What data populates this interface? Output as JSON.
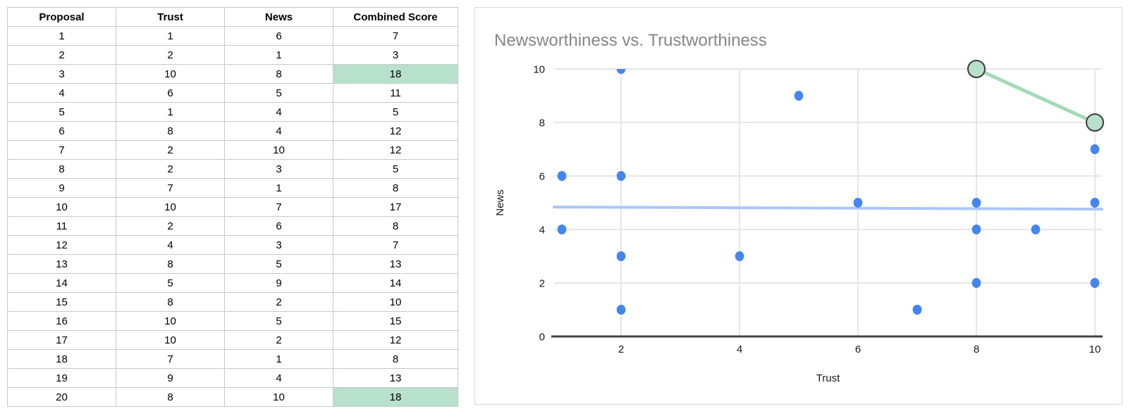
{
  "table": {
    "columns": [
      "Proposal",
      "Trust",
      "News",
      "Combined Score"
    ],
    "rows": [
      [
        1,
        1,
        6,
        7
      ],
      [
        2,
        2,
        1,
        3
      ],
      [
        3,
        10,
        8,
        18
      ],
      [
        4,
        6,
        5,
        11
      ],
      [
        5,
        1,
        4,
        5
      ],
      [
        6,
        8,
        4,
        12
      ],
      [
        7,
        2,
        10,
        12
      ],
      [
        8,
        2,
        3,
        5
      ],
      [
        9,
        7,
        1,
        8
      ],
      [
        10,
        10,
        7,
        17
      ],
      [
        11,
        2,
        6,
        8
      ],
      [
        12,
        4,
        3,
        7
      ],
      [
        13,
        8,
        5,
        13
      ],
      [
        14,
        5,
        9,
        14
      ],
      [
        15,
        8,
        2,
        10
      ],
      [
        16,
        10,
        5,
        15
      ],
      [
        17,
        10,
        2,
        12
      ],
      [
        18,
        7,
        1,
        8
      ],
      [
        19,
        9,
        4,
        13
      ],
      [
        20,
        8,
        10,
        18
      ]
    ],
    "highlighted_proposals": [
      3,
      20
    ],
    "highlight_column": "Combined Score",
    "highlight_color": "#b7e1cd"
  },
  "chart_data": {
    "type": "scatter",
    "title": "Newsworthiness vs. Trustworthiness",
    "xlabel": "Trust",
    "ylabel": "News",
    "xlim": [
      1,
      10
    ],
    "ylim": [
      0,
      10
    ],
    "x_ticks": [
      2,
      4,
      6,
      8,
      10
    ],
    "y_ticks": [
      0,
      2,
      4,
      6,
      8,
      10
    ],
    "grid": true,
    "legend": "none",
    "series": [
      {
        "name": "proposals",
        "color": "#4285f4",
        "points": [
          [
            1,
            6
          ],
          [
            2,
            1
          ],
          [
            6,
            5
          ],
          [
            1,
            4
          ],
          [
            8,
            4
          ],
          [
            2,
            10
          ],
          [
            2,
            3
          ],
          [
            7,
            1
          ],
          [
            10,
            7
          ],
          [
            2,
            6
          ],
          [
            4,
            3
          ],
          [
            8,
            5
          ],
          [
            5,
            9
          ],
          [
            8,
            2
          ],
          [
            10,
            5
          ],
          [
            10,
            2
          ],
          [
            7,
            1
          ],
          [
            9,
            4
          ]
        ]
      },
      {
        "name": "top-combined-score",
        "color": "#b7e1cd",
        "outline_color": "#3c3c3c",
        "connector_color": "#a2dbb6",
        "connected": true,
        "points": [
          [
            8,
            10
          ],
          [
            10,
            8
          ]
        ]
      }
    ],
    "trendline": {
      "color": "#a9c7f8",
      "y_start": 4.84,
      "y_end": 4.76
    },
    "title_color": "#878787",
    "gridline_color": "#e6e6e6",
    "axis_line_color": "#424242"
  }
}
